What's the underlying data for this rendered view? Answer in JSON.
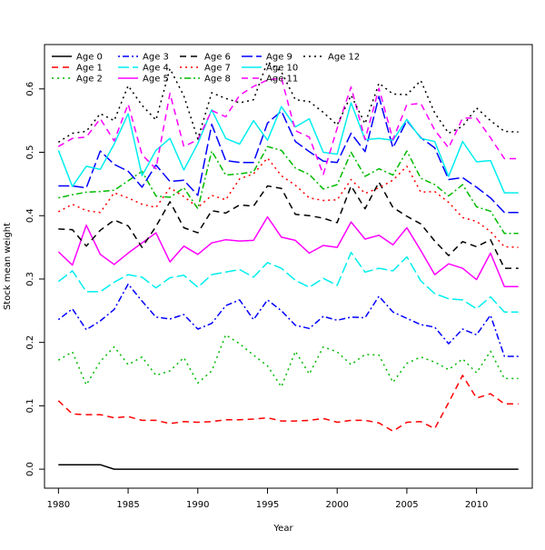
{
  "chart_data": {
    "type": "line",
    "title": "",
    "xlabel": "Year",
    "ylabel": "Stock mean weight",
    "xlim": [
      1979,
      2014
    ],
    "ylim": [
      -0.03,
      0.67
    ],
    "grid": false,
    "legend_position": "top-left",
    "x_ticks": [
      1980,
      1985,
      1990,
      1995,
      2000,
      2005,
      2010
    ],
    "y_ticks": [
      0.0,
      0.1,
      0.2,
      0.3,
      0.4,
      0.5,
      0.6
    ],
    "x": [
      1980,
      1981,
      1982,
      1983,
      1984,
      1985,
      1986,
      1987,
      1988,
      1989,
      1990,
      1991,
      1992,
      1993,
      1994,
      1995,
      1996,
      1997,
      1998,
      1999,
      2000,
      2001,
      2002,
      2003,
      2004,
      2005,
      2006,
      2007,
      2008,
      2009,
      2010,
      2011,
      2012,
      2013
    ],
    "series": [
      {
        "name": "Age 0",
        "color": "#000000",
        "dash": "solid",
        "values": [
          0.007,
          0.007,
          0.007,
          0.007,
          0.0,
          0.0,
          0.0,
          0.0,
          0.0,
          0.0,
          0.0,
          0.0,
          0.0,
          0.0,
          0.0,
          0.0,
          0.0,
          0.0,
          0.0,
          0.0,
          0.0,
          0.0,
          0.0,
          0.0,
          0.0,
          0.0,
          0.0,
          0.0,
          0.0,
          0.0,
          0.0,
          0.0,
          0.0,
          0.0
        ]
      },
      {
        "name": "Age 1",
        "color": "#ff0000",
        "dash": "dashed",
        "values": [
          0.108,
          0.087,
          0.086,
          0.086,
          0.081,
          0.083,
          0.077,
          0.077,
          0.072,
          0.075,
          0.074,
          0.075,
          0.078,
          0.078,
          0.079,
          0.081,
          0.076,
          0.076,
          0.077,
          0.08,
          0.074,
          0.077,
          0.077,
          0.073,
          0.06,
          0.074,
          0.075,
          0.064,
          0.105,
          0.148,
          0.112,
          0.119,
          0.103,
          0.103
        ]
      },
      {
        "name": "Age 2",
        "color": "#00bb00",
        "dash": "dotted",
        "values": [
          0.172,
          0.185,
          0.133,
          0.17,
          0.193,
          0.165,
          0.177,
          0.148,
          0.155,
          0.176,
          0.136,
          0.155,
          0.212,
          0.198,
          0.18,
          0.163,
          0.13,
          0.186,
          0.15,
          0.193,
          0.185,
          0.165,
          0.181,
          0.18,
          0.137,
          0.167,
          0.177,
          0.169,
          0.157,
          0.174,
          0.152,
          0.186,
          0.143,
          0.143
        ]
      },
      {
        "name": "Age 3",
        "color": "#0000ff",
        "dash": "dashdot",
        "values": [
          0.236,
          0.253,
          0.22,
          0.234,
          0.252,
          0.292,
          0.265,
          0.24,
          0.237,
          0.244,
          0.221,
          0.23,
          0.258,
          0.267,
          0.236,
          0.267,
          0.25,
          0.227,
          0.222,
          0.241,
          0.235,
          0.24,
          0.239,
          0.273,
          0.248,
          0.238,
          0.228,
          0.224,
          0.198,
          0.221,
          0.212,
          0.243,
          0.178,
          0.178
        ]
      },
      {
        "name": "Age 4",
        "color": "#00eeee",
        "dash": "longdash",
        "values": [
          0.296,
          0.313,
          0.28,
          0.28,
          0.295,
          0.307,
          0.303,
          0.286,
          0.302,
          0.306,
          0.287,
          0.307,
          0.311,
          0.315,
          0.303,
          0.326,
          0.317,
          0.298,
          0.287,
          0.301,
          0.29,
          0.342,
          0.311,
          0.317,
          0.313,
          0.335,
          0.297,
          0.277,
          0.269,
          0.267,
          0.253,
          0.272,
          0.248,
          0.248
        ]
      },
      {
        "name": "Age 5",
        "color": "#ff00ff",
        "dash": "solid",
        "values": [
          0.343,
          0.322,
          0.385,
          0.339,
          0.323,
          0.341,
          0.357,
          0.373,
          0.327,
          0.352,
          0.339,
          0.357,
          0.362,
          0.36,
          0.361,
          0.398,
          0.366,
          0.361,
          0.341,
          0.353,
          0.35,
          0.39,
          0.363,
          0.369,
          0.354,
          0.381,
          0.345,
          0.307,
          0.324,
          0.317,
          0.299,
          0.341,
          0.288,
          0.288
        ]
      },
      {
        "name": "Age 6",
        "color": "#000000",
        "dash": "dashed",
        "values": [
          0.379,
          0.378,
          0.352,
          0.377,
          0.393,
          0.384,
          0.35,
          0.383,
          0.422,
          0.381,
          0.373,
          0.408,
          0.404,
          0.417,
          0.415,
          0.447,
          0.443,
          0.402,
          0.4,
          0.396,
          0.389,
          0.447,
          0.411,
          0.453,
          0.413,
          0.399,
          0.387,
          0.36,
          0.337,
          0.359,
          0.351,
          0.362,
          0.317,
          0.317
        ]
      },
      {
        "name": "Age 7",
        "color": "#ff0000",
        "dash": "dotted",
        "values": [
          0.406,
          0.418,
          0.408,
          0.405,
          0.436,
          0.428,
          0.418,
          0.413,
          0.444,
          0.43,
          0.413,
          0.432,
          0.425,
          0.458,
          0.466,
          0.491,
          0.463,
          0.448,
          0.428,
          0.424,
          0.425,
          0.457,
          0.435,
          0.444,
          0.456,
          0.478,
          0.437,
          0.438,
          0.421,
          0.397,
          0.391,
          0.375,
          0.351,
          0.35
        ]
      },
      {
        "name": "Age 8",
        "color": "#00bb00",
        "dash": "dashdot",
        "values": [
          0.428,
          0.433,
          0.437,
          0.438,
          0.44,
          0.455,
          0.47,
          0.431,
          0.429,
          0.444,
          0.411,
          0.502,
          0.464,
          0.466,
          0.469,
          0.509,
          0.503,
          0.475,
          0.465,
          0.442,
          0.449,
          0.5,
          0.462,
          0.474,
          0.464,
          0.502,
          0.459,
          0.449,
          0.431,
          0.449,
          0.414,
          0.407,
          0.372,
          0.372
        ]
      },
      {
        "name": "Age 9",
        "color": "#0000ff",
        "dash": "longdash",
        "values": [
          0.447,
          0.447,
          0.444,
          0.502,
          0.481,
          0.47,
          0.445,
          0.48,
          0.454,
          0.456,
          0.432,
          0.544,
          0.487,
          0.484,
          0.484,
          0.546,
          0.565,
          0.517,
          0.501,
          0.486,
          0.484,
          0.53,
          0.501,
          0.588,
          0.507,
          0.55,
          0.523,
          0.507,
          0.457,
          0.46,
          0.445,
          0.428,
          0.405,
          0.405
        ]
      },
      {
        "name": "Age 10",
        "color": "#00eeee",
        "dash": "solid",
        "values": [
          0.503,
          0.446,
          0.478,
          0.473,
          0.513,
          0.561,
          0.463,
          0.503,
          0.522,
          0.472,
          0.514,
          0.567,
          0.522,
          0.513,
          0.55,
          0.519,
          0.572,
          0.54,
          0.553,
          0.5,
          0.497,
          0.578,
          0.52,
          0.522,
          0.519,
          0.552,
          0.522,
          0.517,
          0.462,
          0.517,
          0.485,
          0.487,
          0.436,
          0.436
        ]
      },
      {
        "name": "Age 11",
        "color": "#ff00ff",
        "dash": "dashed",
        "values": [
          0.509,
          0.522,
          0.524,
          0.553,
          0.518,
          0.576,
          0.496,
          0.474,
          0.593,
          0.509,
          0.52,
          0.566,
          0.556,
          0.59,
          0.604,
          0.614,
          0.617,
          0.534,
          0.524,
          0.465,
          0.538,
          0.603,
          0.52,
          0.601,
          0.52,
          0.575,
          0.577,
          0.535,
          0.507,
          0.554,
          0.554,
          0.523,
          0.49,
          0.49
        ]
      },
      {
        "name": "Age 12",
        "color": "#000000",
        "dash": "dotted",
        "values": [
          0.516,
          0.53,
          0.533,
          0.561,
          0.55,
          0.605,
          0.574,
          0.551,
          0.632,
          0.589,
          0.521,
          0.594,
          0.585,
          0.578,
          0.583,
          0.643,
          0.627,
          0.583,
          0.58,
          0.563,
          0.543,
          0.59,
          0.545,
          0.609,
          0.592,
          0.591,
          0.613,
          0.562,
          0.53,
          0.541,
          0.57,
          0.55,
          0.533,
          0.532
        ]
      }
    ]
  }
}
